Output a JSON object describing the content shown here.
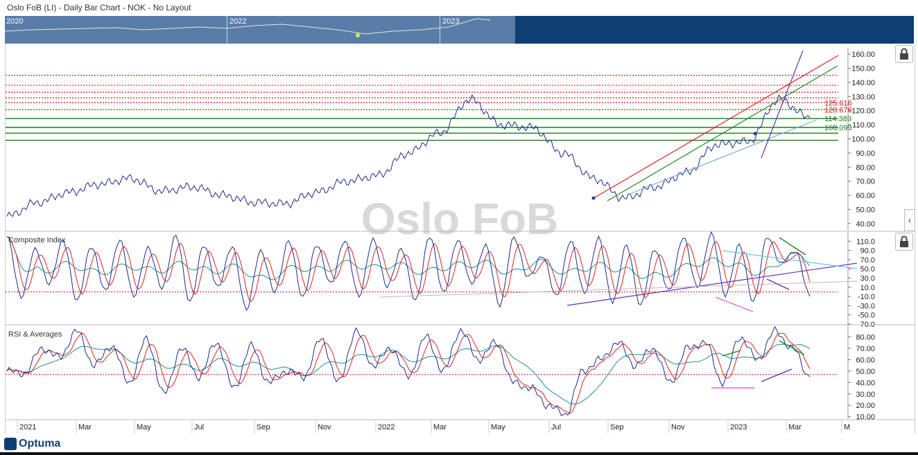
{
  "window": {
    "title": "Oslo FoB (LI) - Daily Bar Chart - NOK - No Layout"
  },
  "navigator": {
    "years": [
      "2020",
      "2022",
      "2023"
    ]
  },
  "watermark": "Oslo FoB",
  "brand": "Optuma",
  "colors": {
    "price": "#1b2a8a",
    "red_level": "#d11",
    "green_level": "#1a7a1a",
    "red_ma": "#e02020",
    "teal_ma": "#1a8f8f",
    "purple": "#6a2bb5",
    "magenta": "#e040e0",
    "light_blue": "#7ab0c8",
    "navy": "#0d3f75"
  },
  "chart_data": [
    {
      "panel": "price",
      "type": "line",
      "title": "",
      "y_ticks": [
        "160.00",
        "150.00",
        "140.00",
        "130.00",
        "120.00",
        "110.00",
        "100.00",
        "90.00",
        "80.00",
        "70.00",
        "60.00",
        "50.00",
        "40.00"
      ],
      "ylim": [
        35,
        165
      ],
      "red_levels": [
        145,
        138,
        133,
        129,
        125.616,
        120.676
      ],
      "green_levels": [
        114.389,
        108.099,
        104,
        99
      ],
      "labels": [
        "125.616",
        "120.676",
        "114.389",
        "108.099"
      ],
      "x": [
        "2021-01",
        "2021-02",
        "2021-03",
        "2021-04",
        "2021-05",
        "2021-06",
        "2021-07",
        "2021-08",
        "2021-09",
        "2021-10",
        "2021-11",
        "2021-12",
        "2022-01",
        "2022-02",
        "2022-03",
        "2022-04",
        "2022-05",
        "2022-06",
        "2022-07",
        "2022-08",
        "2022-09",
        "2022-10",
        "2022-11",
        "2022-12",
        "2023-01",
        "2023-02",
        "2023-03"
      ],
      "series": [
        {
          "values": [
            45,
            55,
            62,
            68,
            72,
            63,
            66,
            60,
            55,
            54,
            62,
            70,
            74,
            90,
            104,
            128,
            110,
            108,
            90,
            72,
            58,
            66,
            76,
            96,
            98,
            128,
            115
          ]
        }
      ]
    },
    {
      "panel": "composite",
      "type": "line",
      "title": "Composite Index",
      "y_ticks": [
        "110.0",
        "90.0",
        "70.0",
        "50.0",
        "30.0",
        "10.0",
        "-10.0",
        "-30.0",
        "-50.0",
        "-70.0"
      ],
      "ylim": [
        -70,
        130
      ],
      "series": [
        {
          "values": [
            120,
            -10,
            90,
            20,
            110,
            -20,
            100,
            0,
            115,
            -10,
            95,
            10,
            120,
            -20,
            100,
            10,
            100,
            -40,
            90,
            0,
            110,
            -10,
            100,
            20,
            110,
            -10,
            115,
            10,
            95,
            -20,
            120,
            0,
            110,
            20,
            100,
            -30,
            120,
            30,
            80,
            -10,
            110,
            0,
            115,
            -20,
            100,
            -30,
            95,
            0,
            120,
            10,
            125,
            -5,
            100,
            -20,
            120,
            60,
            90,
            -10
          ]
        }
      ]
    },
    {
      "panel": "rsi",
      "type": "line",
      "title": "RSI & Averages",
      "y_ticks": [
        "80.00",
        "70.00",
        "60.00",
        "50.00",
        "40.00",
        "30.00",
        "20.00",
        "10.00"
      ],
      "ylim": [
        8,
        90
      ],
      "series": [
        {
          "values": [
            50,
            48,
            70,
            62,
            85,
            55,
            72,
            40,
            78,
            30,
            70,
            45,
            75,
            35,
            72,
            40,
            50,
            45,
            78,
            40,
            85,
            55,
            70,
            45,
            80,
            50,
            86,
            60,
            75,
            40,
            35,
            20,
            12,
            50,
            60,
            75,
            55,
            70,
            40,
            70,
            75,
            40,
            80,
            60,
            85,
            70,
            45
          ]
        }
      ]
    }
  ],
  "x_labels": [
    "2021",
    "Mar",
    "May",
    "Jul",
    "Sep",
    "Nov",
    "2022",
    "Mar",
    "May",
    "Jul",
    "Sep",
    "Nov",
    "2023",
    "Mar",
    "M"
  ]
}
